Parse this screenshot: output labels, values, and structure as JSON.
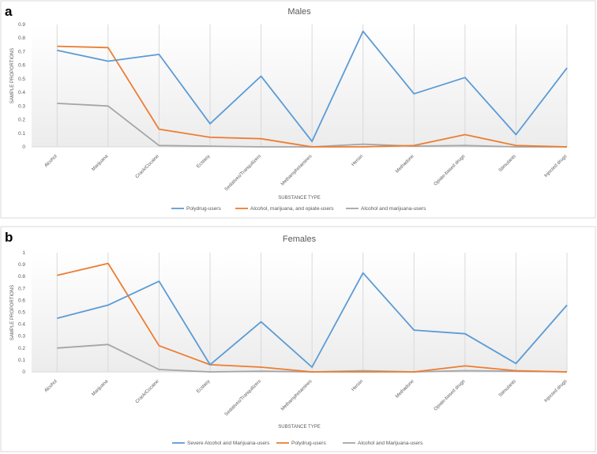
{
  "figure": {
    "panel_labels": [
      "a",
      "b"
    ]
  },
  "colors": {
    "blue": "#5b9bd5",
    "orange": "#ed7d31",
    "gray": "#a5a5a5",
    "axis_text": "#595959",
    "panel_border": "#d9d9d9",
    "grid": "#d9d9d9",
    "plot_bg_top": "#ffffff",
    "plot_bg_bottom": "#ececec"
  },
  "chart_data": [
    {
      "type": "line",
      "panel": "a",
      "title": "Males",
      "xlabel": "SUBSTANCE TYPE",
      "ylabel": "SAMPLE PROPORTIONS",
      "ylim": [
        0,
        0.9
      ],
      "yticks": [
        "0",
        "0.1",
        "0.2",
        "0.3",
        "0.4",
        "0.5",
        "0.6",
        "0.7",
        "0.8",
        "0.9"
      ],
      "grid": "vertical",
      "legend_position": "bottom",
      "categories": [
        "Alcohol",
        "Marijuana",
        "Crack/Cocaine",
        "Ecstasy",
        "Sedatives/Tranquilizers",
        "Methamphetamines",
        "Heroin",
        "Methadone",
        "Opiate-based drugs",
        "Stimulants",
        "Injected drugs"
      ],
      "series": [
        {
          "name": "Polydrug-users",
          "color": "blue",
          "values": [
            0.71,
            0.63,
            0.68,
            0.17,
            0.52,
            0.04,
            0.85,
            0.39,
            0.51,
            0.09,
            0.58
          ]
        },
        {
          "name": "Alcohol, marijuana, and opiate-users",
          "color": "orange",
          "values": [
            0.74,
            0.73,
            0.13,
            0.07,
            0.06,
            0.0,
            0.0,
            0.01,
            0.09,
            0.01,
            0.0
          ]
        },
        {
          "name": "Alcohol and marijuana-users",
          "color": "gray",
          "values": [
            0.32,
            0.3,
            0.01,
            0.005,
            0.0,
            0.0,
            0.02,
            0.005,
            0.01,
            0.0,
            0.0
          ]
        }
      ]
    },
    {
      "type": "line",
      "panel": "b",
      "title": "Females",
      "xlabel": "SUBSTANCE TYPE",
      "ylabel": "SAMPLE PROPORTIONS",
      "ylim": [
        0,
        1
      ],
      "yticks": [
        "0",
        "0.1",
        "0.2",
        "0.3",
        "0.4",
        "0.5",
        "0.6",
        "0.7",
        "0.8",
        "0.9",
        "1"
      ],
      "grid": "vertical",
      "legend_position": "bottom",
      "categories": [
        "Alcohol",
        "Marijuana",
        "Crack/Cocaine",
        "Ecstasy",
        "Sedatives/Tranquilizers",
        "Methamphetamines",
        "Heroin",
        "Methadone",
        "Opiate-based drugs",
        "Stimulants",
        "Injected drugs"
      ],
      "series": [
        {
          "name": "Severe Alcohol and Marijuana-users",
          "color": "blue",
          "values": [
            0.45,
            0.56,
            0.76,
            0.06,
            0.42,
            0.04,
            0.83,
            0.35,
            0.32,
            0.07,
            0.56
          ]
        },
        {
          "name": "Polydrug-users",
          "color": "orange",
          "values": [
            0.81,
            0.91,
            0.22,
            0.06,
            0.04,
            0.0,
            0.0,
            0.0,
            0.05,
            0.01,
            0.0
          ]
        },
        {
          "name": "Alcohol and Marijuana-users",
          "color": "gray",
          "values": [
            0.2,
            0.23,
            0.02,
            0.0,
            0.005,
            0.0,
            0.01,
            0.0,
            0.01,
            0.005,
            0.0
          ]
        }
      ]
    }
  ]
}
